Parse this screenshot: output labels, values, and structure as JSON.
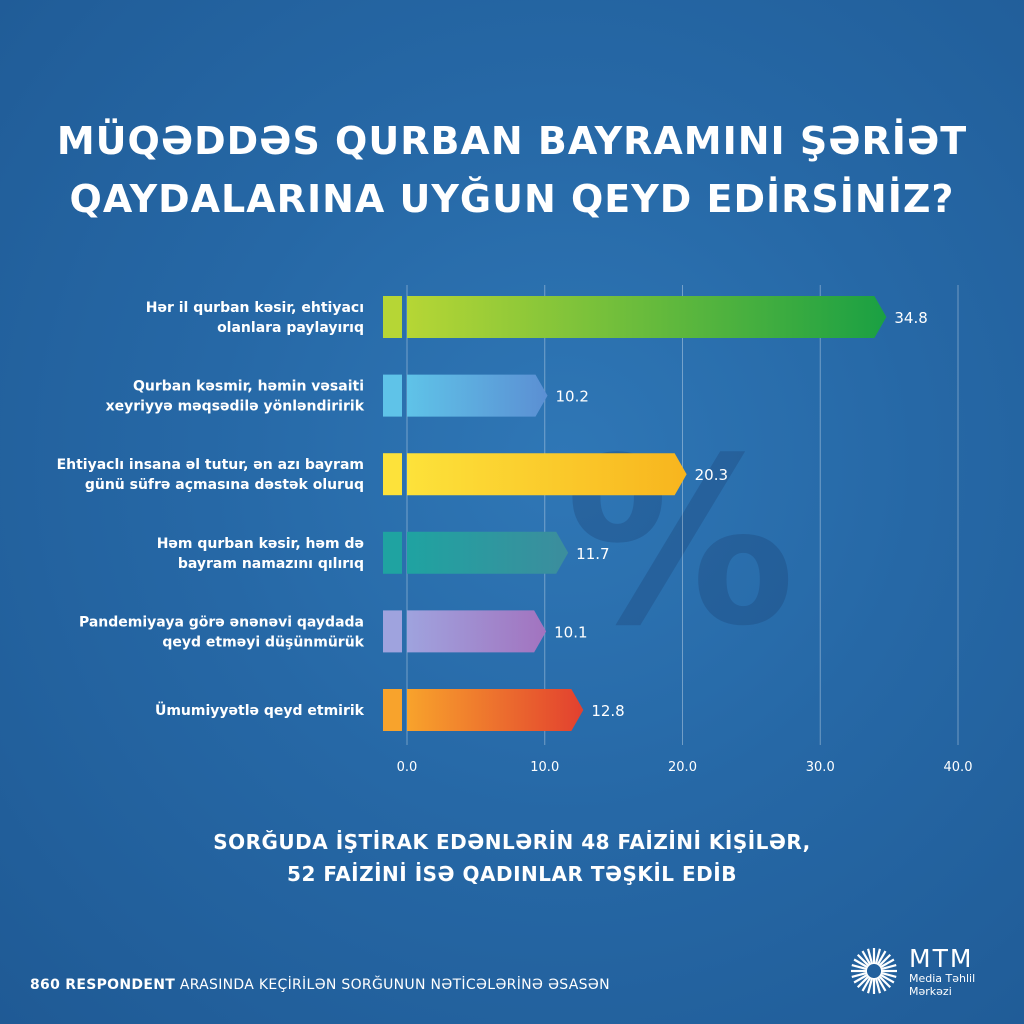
{
  "title": {
    "line1": "MÜQƏDDƏS QURBAN BAYRAMINI ŞƏRİƏT",
    "line2": "QAYDALARINA UYĞUN QEYD EDİRSİNİZ?"
  },
  "watermark": "%",
  "chart_data": {
    "type": "bar",
    "orientation": "horizontal",
    "title": "MÜQƏDDƏS QURBAN BAYRAMINI ŞƏRİƏT QAYDALARINA UYĞUN QEYD EDİRSİNİZ?",
    "categories": [
      [
        "Hər il qurban kəsir, ehtiyacı",
        "olanlara paylayırıq"
      ],
      [
        "Qurban kəsmir, həmin vəsaiti",
        "xeyriyyə məqsədilə yönləndiririk"
      ],
      [
        "Ehtiyaclı insana əl tutur, ən azı bayram",
        "günü süfrə açmasına dəstək oluruq"
      ],
      [
        "Həm qurban kəsir, həm də",
        "bayram namazını qılırıq"
      ],
      [
        "Pandemiyaya görə ənənəvi qaydada",
        "qeyd etməyi düşünmürük"
      ],
      [
        "Ümumiyyətlə qeyd etmirik"
      ]
    ],
    "values": [
      34.8,
      10.2,
      20.3,
      11.7,
      10.1,
      12.8
    ],
    "value_labels": [
      "34.8",
      "10.2",
      "20.3",
      "11.7",
      "10.1",
      "12.8"
    ],
    "colors": [
      [
        "#b6d635",
        "#1aa043"
      ],
      [
        "#5fc3e8",
        "#5b8fd3"
      ],
      [
        "#fde23a",
        "#f8b51e"
      ],
      [
        "#1fa3a1",
        "#3c8d9d"
      ],
      [
        "#9fa3de",
        "#a273bf"
      ],
      [
        "#f8a32c",
        "#e2402f"
      ]
    ],
    "xlim": [
      0,
      40
    ],
    "xticks": [
      0,
      10,
      20,
      30,
      40
    ],
    "xtick_labels": [
      "0.0",
      "10.0",
      "20.0",
      "30.0",
      "40.0"
    ],
    "grid": true
  },
  "note": {
    "line1": "SORĞUDA İŞTİRAK EDƏNLƏRİN 48 FAİZİNİ KİŞİLƏR,",
    "line2": "52 FAİZİNİ İSƏ QADINLAR TƏŞKİL EDİB"
  },
  "footer": {
    "bold": "860 RESPONDENT",
    "rest": " ARASINDA KEÇİRİLƏN SORĞUNUN NƏTİCƏLƏRİNƏ ƏSASƏN"
  },
  "logo": {
    "main": "MTM",
    "sub1": "Media Təhlil",
    "sub2": "Mərkəzi"
  }
}
